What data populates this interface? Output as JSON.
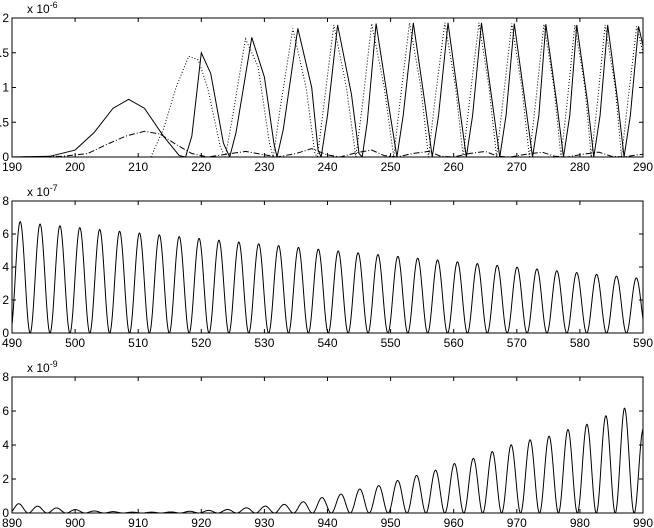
{
  "chart_data": [
    {
      "type": "line",
      "xlim": [
        190,
        290
      ],
      "ylim": [
        0,
        2
      ],
      "xticks": [
        "190",
        "200",
        "210",
        "220",
        "230",
        "240",
        "250",
        "260",
        "270",
        "280",
        "290"
      ],
      "yticks": [
        "0",
        "0.5",
        "1",
        "1.5",
        "2"
      ],
      "y_exponent": {
        "base": "x 10",
        "power": "-6"
      },
      "grid": false,
      "legend": "none",
      "series": [
        {
          "style": "solid",
          "points": [
            [
              190,
              0
            ],
            [
              196,
              0.01
            ],
            [
              200,
              0.1
            ],
            [
              203,
              0.35
            ],
            [
              206,
              0.7
            ],
            [
              208.5,
              0.83
            ],
            [
              211,
              0.7
            ],
            [
              214,
              0.3
            ],
            [
              216.5,
              0.02
            ],
            [
              217.5,
              0
            ],
            [
              218.5,
              0.3
            ],
            [
              220,
              1.5
            ],
            [
              221.5,
              1.2
            ],
            [
              223.5,
              0.2
            ],
            [
              224.5,
              0
            ],
            [
              225.5,
              0.35
            ],
            [
              228,
              1.72
            ],
            [
              230,
              1.15
            ],
            [
              231.5,
              0.2
            ],
            [
              232,
              0
            ],
            [
              233,
              0.4
            ],
            [
              235.3,
              1.85
            ],
            [
              237.5,
              1.0
            ],
            [
              238.5,
              0.1
            ],
            [
              239,
              0
            ],
            [
              240,
              0.6
            ],
            [
              241.6,
              1.9
            ],
            [
              243.8,
              0.9
            ],
            [
              245,
              0.05
            ],
            [
              245.5,
              0
            ],
            [
              246.3,
              0.5
            ],
            [
              247.7,
              1.92
            ],
            [
              249.6,
              0.8
            ],
            [
              251,
              0
            ],
            [
              252,
              0.6
            ],
            [
              253.6,
              1.93
            ],
            [
              255.4,
              0.8
            ],
            [
              256.6,
              0
            ],
            [
              257.6,
              0.6
            ],
            [
              259.1,
              1.93
            ],
            [
              260.8,
              0.8
            ],
            [
              262,
              0
            ],
            [
              263,
              0.6
            ],
            [
              264.4,
              1.93
            ],
            [
              266.1,
              0.8
            ],
            [
              267.3,
              0
            ],
            [
              268.3,
              0.6
            ],
            [
              269.6,
              1.92
            ],
            [
              271.3,
              0.8
            ],
            [
              272.5,
              0
            ],
            [
              273.5,
              0.6
            ],
            [
              274.6,
              1.91
            ],
            [
              276.3,
              0.8
            ],
            [
              277.4,
              0
            ],
            [
              278.4,
              0.6
            ],
            [
              279.5,
              1.9
            ],
            [
              281.2,
              0.8
            ],
            [
              282.2,
              0
            ],
            [
              283.2,
              0.6
            ],
            [
              284.4,
              1.9
            ],
            [
              286.0,
              0.8
            ],
            [
              287.0,
              0
            ],
            [
              288.0,
              0.6
            ],
            [
              289.3,
              1.88
            ],
            [
              290,
              1.6
            ]
          ]
        },
        {
          "style": "dotted",
          "points": [
            [
              212,
              0
            ],
            [
              214,
              0.4
            ],
            [
              216,
              1.0
            ],
            [
              218,
              1.45
            ],
            [
              219.5,
              1.4
            ],
            [
              221,
              1.0
            ],
            [
              223,
              0.15
            ],
            [
              223.8,
              0
            ],
            [
              225,
              0.6
            ],
            [
              227,
              1.7
            ],
            [
              229,
              1.3
            ],
            [
              230.8,
              0.2
            ],
            [
              231.4,
              0
            ],
            [
              232.5,
              0.7
            ],
            [
              234.5,
              1.85
            ],
            [
              236.6,
              1.0
            ],
            [
              238,
              0.05
            ],
            [
              238.4,
              0
            ],
            [
              239.5,
              0.8
            ],
            [
              241,
              1.9
            ],
            [
              243,
              1.0
            ],
            [
              244.5,
              0
            ],
            [
              245.6,
              0.8
            ],
            [
              247,
              1.92
            ],
            [
              249,
              1.0
            ],
            [
              250.5,
              0
            ],
            [
              251.5,
              0.8
            ],
            [
              253,
              1.93
            ],
            [
              254.8,
              1.0
            ],
            [
              256,
              0
            ],
            [
              257,
              0.8
            ],
            [
              258.6,
              1.93
            ],
            [
              260.3,
              1.0
            ],
            [
              261.5,
              0
            ],
            [
              262.5,
              0.8
            ],
            [
              264,
              1.93
            ],
            [
              265.6,
              1.0
            ],
            [
              266.8,
              0
            ],
            [
              267.8,
              0.8
            ],
            [
              269.2,
              1.92
            ],
            [
              270.8,
              1.0
            ],
            [
              272,
              0
            ],
            [
              273,
              0.8
            ],
            [
              274.3,
              1.91
            ],
            [
              275.9,
              1.0
            ],
            [
              277,
              0
            ],
            [
              278,
              0.8
            ],
            [
              279.2,
              1.9
            ],
            [
              280.8,
              1.0
            ],
            [
              281.8,
              0
            ],
            [
              282.8,
              0.8
            ],
            [
              284.0,
              1.9
            ],
            [
              285.6,
              1.0
            ],
            [
              286.6,
              0
            ],
            [
              287.6,
              0.8
            ],
            [
              289.0,
              1.88
            ],
            [
              290,
              1.5
            ]
          ]
        },
        {
          "style": "dashdot",
          "points": [
            [
              190,
              0
            ],
            [
              198,
              0.01
            ],
            [
              202,
              0.05
            ],
            [
              205,
              0.18
            ],
            [
              208,
              0.3
            ],
            [
              211,
              0.37
            ],
            [
              213.5,
              0.33
            ],
            [
              216,
              0.18
            ],
            [
              218.5,
              0.05
            ],
            [
              221,
              0
            ],
            [
              224,
              0.04
            ],
            [
              227,
              0.08
            ],
            [
              229.5,
              0.04
            ],
            [
              232,
              0
            ],
            [
              235,
              0.05
            ],
            [
              237.5,
              0.12
            ],
            [
              240,
              0.03
            ],
            [
              242,
              0
            ],
            [
              244.5,
              0.06
            ],
            [
              247,
              0.1
            ],
            [
              249,
              0.02
            ],
            [
              251,
              0
            ],
            [
              253.5,
              0.05
            ],
            [
              256,
              0.08
            ],
            [
              258,
              0.01
            ],
            [
              260,
              0
            ],
            [
              262.5,
              0.05
            ],
            [
              265,
              0.08
            ],
            [
              267,
              0.01
            ],
            [
              269,
              0
            ],
            [
              271.5,
              0.04
            ],
            [
              274,
              0.07
            ],
            [
              276,
              0.01
            ],
            [
              278,
              0
            ],
            [
              280.5,
              0.04
            ],
            [
              283,
              0.07
            ],
            [
              285,
              0.01
            ],
            [
              287,
              0
            ],
            [
              289,
              0.03
            ],
            [
              290,
              0.04
            ]
          ]
        }
      ]
    },
    {
      "type": "line",
      "xlim": [
        490,
        590
      ],
      "ylim": [
        0,
        8
      ],
      "xticks": [
        "490",
        "500",
        "510",
        "520",
        "530",
        "540",
        "550",
        "560",
        "570",
        "580",
        "590"
      ],
      "yticks": [
        "0",
        "2",
        "4",
        "6",
        "8"
      ],
      "y_exponent": {
        "base": "x 10",
        "power": "-7"
      },
      "grid": false,
      "legend": "none",
      "oscillation": {
        "x_start": 490,
        "x_end": 590,
        "first_peak_x": 491.3,
        "period": 3.15,
        "peak_values": [
          [
            491.3,
            6.75
          ],
          [
            494.5,
            6.6
          ],
          [
            590,
            3.3
          ]
        ]
      }
    },
    {
      "type": "line",
      "xlim": [
        890,
        990
      ],
      "ylim": [
        0,
        8
      ],
      "xticks": [
        "890",
        "900",
        "910",
        "920",
        "930",
        "940",
        "950",
        "960",
        "970",
        "980",
        "990"
      ],
      "yticks": [
        "0",
        "2",
        "4",
        "6",
        "8"
      ],
      "y_exponent": {
        "base": "x 10",
        "power": "-9"
      },
      "grid": false,
      "legend": "none",
      "oscillation": {
        "x_start": 890,
        "x_end": 990,
        "first_peak_x": 891.1,
        "period": 3.0,
        "peak_values": [
          [
            891,
            0.55
          ],
          [
            894,
            0.4
          ],
          [
            897,
            0.3
          ],
          [
            900,
            0.2
          ],
          [
            903,
            0.12
          ],
          [
            906,
            0.08
          ],
          [
            909,
            0.05
          ],
          [
            912,
            0.05
          ],
          [
            915,
            0.06
          ],
          [
            918,
            0.1
          ],
          [
            921,
            0.15
          ],
          [
            924,
            0.2
          ],
          [
            927,
            0.3
          ],
          [
            930,
            0.4
          ],
          [
            933,
            0.5
          ],
          [
            936,
            0.65
          ],
          [
            939,
            0.9
          ],
          [
            942,
            1.1
          ],
          [
            945,
            1.4
          ],
          [
            948,
            1.6
          ],
          [
            951,
            1.9
          ],
          [
            954,
            2.2
          ],
          [
            957,
            2.5
          ],
          [
            960,
            2.9
          ],
          [
            963,
            3.2
          ],
          [
            966,
            3.6
          ],
          [
            969,
            4.0
          ],
          [
            972,
            4.3
          ],
          [
            975,
            4.5
          ],
          [
            978,
            4.9
          ],
          [
            981,
            5.2
          ],
          [
            984,
            5.7
          ],
          [
            987,
            6.2
          ],
          [
            990,
            5.0
          ]
        ]
      }
    }
  ]
}
